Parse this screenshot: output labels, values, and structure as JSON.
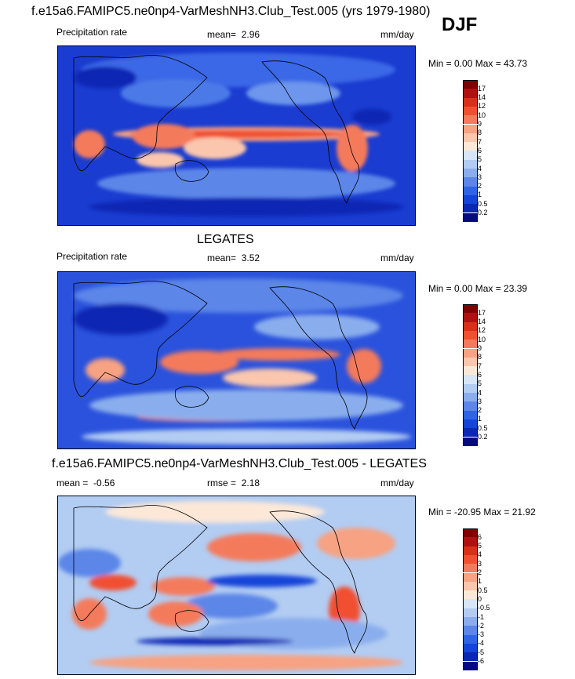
{
  "header": {
    "title": "f.e15a6.FAMIPC5.ne0np4-VarMeshNH3.Club_Test.005 (yrs 1979-1980)",
    "season": "DJF"
  },
  "panels": [
    {
      "id": "model",
      "section_title": "",
      "left_label": "Precipitation rate",
      "stat_label": "mean=",
      "stat_value": "2.96",
      "stat2_label": "",
      "stat2_value": "",
      "units": "mm/day",
      "minmax": "Min =   0.00 Max =  43.73",
      "levels": [
        "17",
        "14",
        "12",
        "10",
        "9",
        "8",
        "7",
        "6",
        "5",
        "4",
        "3",
        "2",
        "1",
        "0.5",
        "0.2"
      ],
      "colors": [
        "#800000",
        "#b01010",
        "#d83018",
        "#f05030",
        "#f47a5c",
        "#f7a282",
        "#fac6ad",
        "#fde8d8",
        "#d6e6f6",
        "#b2ccf2",
        "#8aaeed",
        "#5c86e8",
        "#3064e6",
        "#1444d8",
        "#0a28b4",
        "#050a80"
      ]
    },
    {
      "id": "obs",
      "section_title": "LEGATES",
      "left_label": "Precipitation rate",
      "stat_label": "mean=",
      "stat_value": "3.52",
      "stat2_label": "",
      "stat2_value": "",
      "units": "mm/day",
      "minmax": "Min =   0.00 Max =  23.39",
      "levels": [
        "17",
        "14",
        "12",
        "10",
        "9",
        "8",
        "7",
        "6",
        "5",
        "4",
        "3",
        "2",
        "1",
        "0.5",
        "0.2"
      ],
      "colors": [
        "#800000",
        "#b01010",
        "#d83018",
        "#f05030",
        "#f47a5c",
        "#f7a282",
        "#fac6ad",
        "#fde8d8",
        "#d6e6f6",
        "#b2ccf2",
        "#8aaeed",
        "#5c86e8",
        "#3064e6",
        "#1444d8",
        "#0a28b4",
        "#050a80"
      ]
    },
    {
      "id": "diff",
      "section_title": "f.e15a6.FAMIPC5.ne0np4-VarMeshNH3.Club_Test.005 - LEGATES",
      "left_label": "",
      "stat_label": "mean =",
      "stat_value": "-0.56",
      "stat2_label": "rmse =",
      "stat2_value": "2.18",
      "units": "mm/day",
      "minmax": "Min = -20.95 Max =  21.92",
      "levels": [
        "6",
        "5",
        "4",
        "3",
        "2",
        "1",
        "0.5",
        "0",
        "-0.5",
        "-1",
        "-2",
        "-3",
        "-4",
        "-5",
        "-6"
      ],
      "colors": [
        "#800000",
        "#b01010",
        "#d83018",
        "#f05030",
        "#f47a5c",
        "#f7a282",
        "#fac6ad",
        "#fde8d8",
        "#d6e6f6",
        "#b2ccf2",
        "#8aaeed",
        "#5c86e8",
        "#3064e6",
        "#1444d8",
        "#0a28b4",
        "#050a80"
      ]
    }
  ]
}
